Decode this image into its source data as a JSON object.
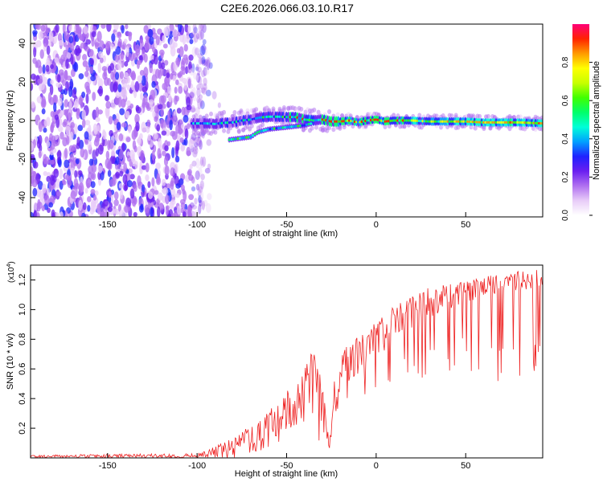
{
  "title": "C2E6.2026.066.03.10.R17",
  "chart_data": [
    {
      "type": "heatmap",
      "name": "spectrogram",
      "xlabel": "Height of straight line (km)",
      "ylabel": "Frequency (Hz)",
      "xlim": [
        -193,
        93
      ],
      "ylim": [
        -50,
        50
      ],
      "xticks": [
        -150,
        -100,
        -50,
        0,
        50
      ],
      "yticks": [
        -40,
        -20,
        0,
        20,
        40
      ],
      "colorbar": {
        "label": "Normalized spectral amplitude",
        "range": [
          0,
          1
        ],
        "ticks": [
          0.0,
          0.2,
          0.4,
          0.6,
          0.8
        ],
        "stops": [
          "#ffffff",
          "#e8ccf8",
          "#b070f0",
          "#6a1ff0",
          "#1f22ff",
          "#00a0ff",
          "#00ffd8",
          "#00ff6a",
          "#40ff00",
          "#c8ff00",
          "#ffff00",
          "#ff9a00",
          "#ff2400",
          "#ff0078"
        ]
      },
      "noise_region_x": [
        -193,
        -95
      ],
      "line": {
        "x": [
          -103,
          -95,
          -90,
          -85,
          -80,
          -75,
          -70,
          -65,
          -60,
          -55,
          -50,
          -45,
          -40,
          -35,
          -30,
          -25,
          -20,
          -15,
          -10,
          -5,
          0,
          5,
          10,
          20,
          30,
          40,
          50,
          60,
          70,
          80,
          93
        ],
        "freq": [
          -1.5,
          -1.5,
          -1.8,
          -1.2,
          -1,
          0,
          0.5,
          1.5,
          2,
          2,
          1.8,
          1.8,
          0.5,
          0,
          0.5,
          -0.5,
          -0.5,
          0,
          -1,
          0,
          0.5,
          -0.5,
          0,
          0,
          -0.5,
          -0.5,
          -0.5,
          -1,
          -1,
          -1,
          -1.5
        ]
      },
      "branch": {
        "x": [
          -82,
          -78,
          -74,
          -70,
          -66,
          -60,
          -55,
          -50,
          -45,
          -40,
          -36
        ],
        "freq": [
          -10,
          -9.5,
          -9,
          -8.5,
          -6,
          -4.5,
          -4,
          -3.5,
          -3,
          -2.5,
          -1.5
        ]
      }
    },
    {
      "type": "line",
      "name": "snr",
      "xlabel": "Height of straight line (km)",
      "ylabel": "SNR (10 * v/v)",
      "yscale_label": "(x10",
      "yscale_exp": "4",
      "yscale_close": ")",
      "xlim": [
        -193,
        93
      ],
      "ylim": [
        0,
        1.3
      ],
      "xticks": [
        -150,
        -100,
        -50,
        0,
        50
      ],
      "yticks": [
        0.2,
        0.4,
        0.6,
        0.8,
        1.0,
        1.2
      ],
      "color": "#ee2222",
      "envelope": {
        "x": [
          -193,
          -100,
          -95,
          -80,
          -70,
          -60,
          -50,
          -42,
          -35,
          -30,
          -26,
          -24,
          -20,
          -10,
          0,
          10,
          20,
          30,
          40,
          50,
          60,
          70,
          80,
          93
        ],
        "base": [
          0.0,
          0.0,
          0.0,
          0.04,
          0.08,
          0.12,
          0.18,
          0.22,
          0.25,
          0.2,
          0.05,
          0.35,
          0.42,
          0.55,
          0.65,
          0.8,
          0.88,
          0.95,
          1.0,
          1.04,
          1.08,
          1.1,
          1.12,
          1.15
        ],
        "peak": [
          0.02,
          0.03,
          0.05,
          0.14,
          0.22,
          0.32,
          0.45,
          0.55,
          0.75,
          0.5,
          0.1,
          0.48,
          0.72,
          0.82,
          0.92,
          1.02,
          1.1,
          1.15,
          1.18,
          1.2,
          1.22,
          1.24,
          1.26,
          1.28
        ],
        "dip": [
          0.0,
          0.0,
          0.0,
          0.0,
          0.02,
          0.04,
          0.08,
          0.12,
          0.14,
          0.08,
          0.0,
          0.28,
          0.33,
          0.4,
          0.45,
          0.5,
          0.55,
          0.5,
          0.55,
          0.5,
          0.45,
          0.5,
          0.55,
          0.6
        ]
      }
    }
  ]
}
